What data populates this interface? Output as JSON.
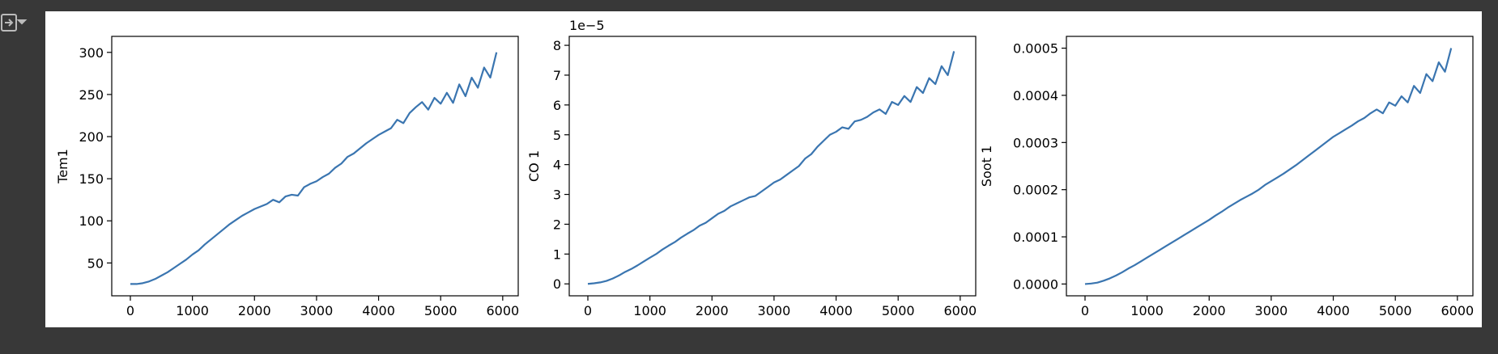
{
  "chart_data": [
    {
      "type": "line",
      "ylabel": "Tem1",
      "x": [
        0,
        100,
        200,
        300,
        400,
        500,
        600,
        700,
        800,
        900,
        1000,
        1100,
        1200,
        1300,
        1400,
        1500,
        1600,
        1700,
        1800,
        1900,
        2000,
        2100,
        2200,
        2300,
        2400,
        2500,
        2600,
        2700,
        2800,
        2900,
        3000,
        3100,
        3200,
        3300,
        3400,
        3500,
        3600,
        3700,
        3800,
        3900,
        4000,
        4100,
        4200,
        4300,
        4400,
        4500,
        4600,
        4700,
        4800,
        4900,
        5000,
        5100,
        5200,
        5300,
        5400,
        5500,
        5600,
        5700,
        5800,
        5900
      ],
      "series": [
        {
          "color": "#3a75b0",
          "values": [
            25,
            25,
            26,
            28,
            31,
            35,
            39,
            44,
            49,
            54,
            60,
            65,
            72,
            78,
            84,
            90,
            96,
            101,
            106,
            110,
            114,
            117,
            120,
            125,
            122,
            129,
            131,
            130,
            140,
            144,
            147,
            152,
            156,
            163,
            168,
            176,
            180,
            186,
            192,
            197,
            202,
            206,
            210,
            220,
            216,
            228,
            235,
            241,
            232,
            246,
            239,
            252,
            240,
            262,
            248,
            270,
            258,
            282,
            270,
            300
          ]
        }
      ],
      "xlim": [
        -300,
        6250
      ],
      "xticks": [
        0,
        1000,
        2000,
        3000,
        4000,
        5000,
        6000
      ],
      "ylim": [
        11,
        319
      ],
      "yticks": [
        50,
        100,
        150,
        200,
        250,
        300
      ]
    },
    {
      "type": "line",
      "ylabel": "CO 1",
      "y_offset_label": "1e−5",
      "x": [
        0,
        100,
        200,
        300,
        400,
        500,
        600,
        700,
        800,
        900,
        1000,
        1100,
        1200,
        1300,
        1400,
        1500,
        1600,
        1700,
        1800,
        1900,
        2000,
        2100,
        2200,
        2300,
        2400,
        2500,
        2600,
        2700,
        2800,
        2900,
        3000,
        3100,
        3200,
        3300,
        3400,
        3500,
        3600,
        3700,
        3800,
        3900,
        4000,
        4100,
        4200,
        4300,
        4400,
        4500,
        4600,
        4700,
        4800,
        4900,
        5000,
        5100,
        5200,
        5300,
        5400,
        5500,
        5600,
        5700,
        5800,
        5900
      ],
      "series": [
        {
          "color": "#3a75b0",
          "values": [
            0,
            0.02,
            0.05,
            0.1,
            0.18,
            0.28,
            0.4,
            0.5,
            0.62,
            0.75,
            0.88,
            1.0,
            1.15,
            1.28,
            1.4,
            1.55,
            1.68,
            1.8,
            1.95,
            2.05,
            2.2,
            2.35,
            2.45,
            2.6,
            2.7,
            2.8,
            2.9,
            2.95,
            3.1,
            3.25,
            3.4,
            3.5,
            3.65,
            3.8,
            3.95,
            4.2,
            4.35,
            4.6,
            4.8,
            5.0,
            5.1,
            5.25,
            5.2,
            5.45,
            5.5,
            5.6,
            5.75,
            5.85,
            5.7,
            6.1,
            6.0,
            6.3,
            6.1,
            6.6,
            6.4,
            6.9,
            6.7,
            7.3,
            7.0,
            7.8
          ]
        }
      ],
      "xlim": [
        -300,
        6250
      ],
      "xticks": [
        0,
        1000,
        2000,
        3000,
        4000,
        5000,
        6000
      ],
      "ylim": [
        -0.4,
        8.3
      ],
      "yticks": [
        0,
        1,
        2,
        3,
        4,
        5,
        6,
        7,
        8
      ]
    },
    {
      "type": "line",
      "ylabel": "Soot 1",
      "x": [
        0,
        100,
        200,
        300,
        400,
        500,
        600,
        700,
        800,
        900,
        1000,
        1100,
        1200,
        1300,
        1400,
        1500,
        1600,
        1700,
        1800,
        1900,
        2000,
        2100,
        2200,
        2300,
        2400,
        2500,
        2600,
        2700,
        2800,
        2900,
        3000,
        3100,
        3200,
        3300,
        3400,
        3500,
        3600,
        3700,
        3800,
        3900,
        4000,
        4100,
        4200,
        4300,
        4400,
        4500,
        4600,
        4700,
        4800,
        4900,
        5000,
        5100,
        5200,
        5300,
        5400,
        5500,
        5600,
        5700,
        5800,
        5900
      ],
      "series": [
        {
          "color": "#3a75b0",
          "values": [
            0,
            1e-06,
            3e-06,
            7e-06,
            1.2e-05,
            1.8e-05,
            2.5e-05,
            3.3e-05,
            4e-05,
            4.8e-05,
            5.6e-05,
            6.4e-05,
            7.2e-05,
            8e-05,
            8.8e-05,
            9.6e-05,
            0.000104,
            0.000112,
            0.00012,
            0.000128,
            0.000136,
            0.000145,
            0.000153,
            0.000162,
            0.00017,
            0.000178,
            0.000185,
            0.000192,
            0.0002,
            0.00021,
            0.000218,
            0.000226,
            0.000234,
            0.000243,
            0.000252,
            0.000262,
            0.000272,
            0.000282,
            0.000292,
            0.000302,
            0.000312,
            0.00032,
            0.000328,
            0.000336,
            0.000345,
            0.000352,
            0.000362,
            0.00037,
            0.000362,
            0.000385,
            0.000378,
            0.000398,
            0.000385,
            0.00042,
            0.000405,
            0.000445,
            0.00043,
            0.00047,
            0.00045,
            0.0005
          ]
        }
      ],
      "xlim": [
        -300,
        6250
      ],
      "xticks": [
        0,
        1000,
        2000,
        3000,
        4000,
        5000,
        6000
      ],
      "ylim": [
        -2.5e-05,
        0.000525
      ],
      "yticks": [
        {
          "value": 0,
          "label": "0.0000"
        },
        {
          "value": 0.0001,
          "label": "0.0001"
        },
        {
          "value": 0.0002,
          "label": "0.0002"
        },
        {
          "value": 0.0003,
          "label": "0.0003"
        },
        {
          "value": 0.0004,
          "label": "0.0004"
        },
        {
          "value": 0.0005,
          "label": "0.0005"
        }
      ]
    }
  ]
}
